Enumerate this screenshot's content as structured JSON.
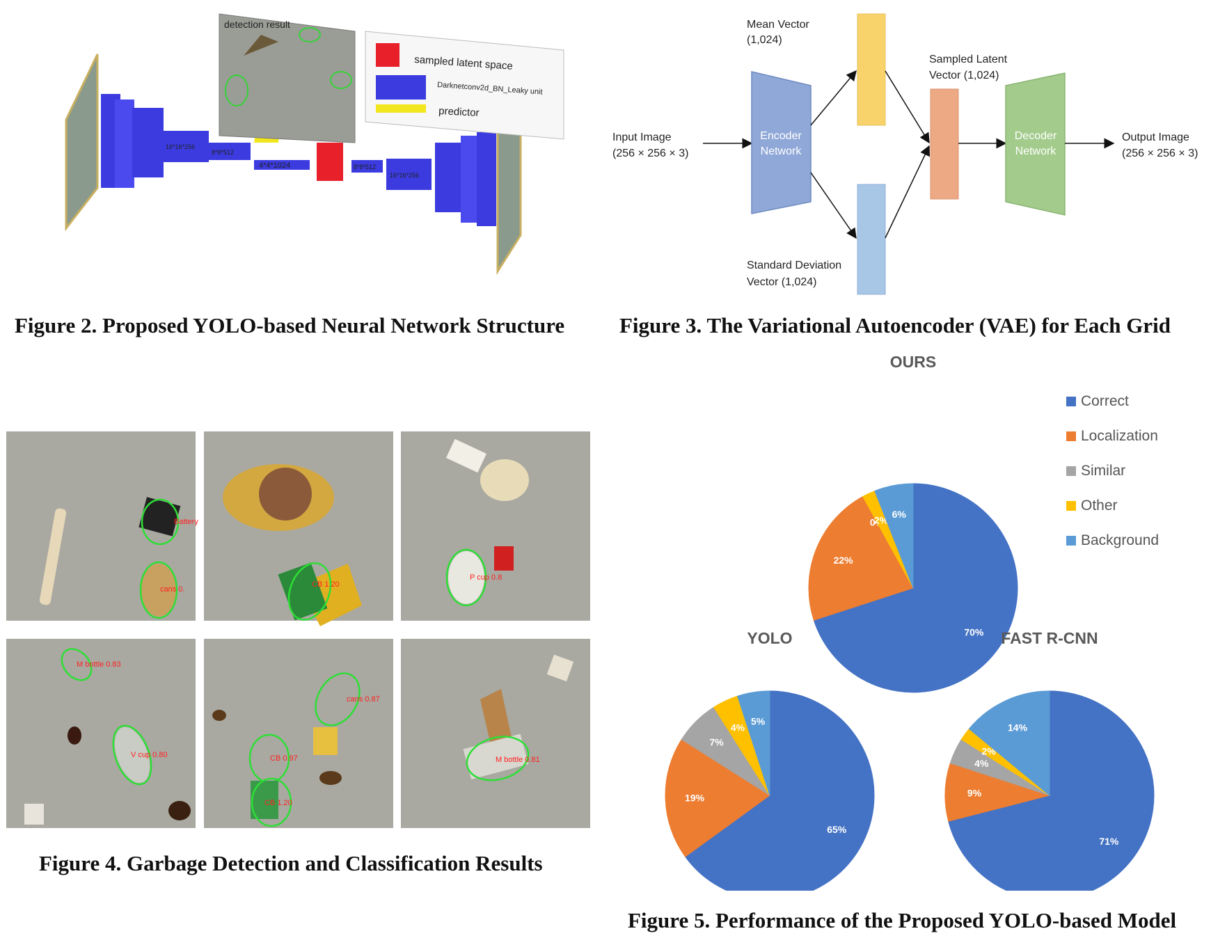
{
  "figure2": {
    "caption": "Figure 2. Proposed YOLO-based Neural Network Structure",
    "detection_title": "detection result",
    "legend": [
      {
        "label": "sampled latent space",
        "color": "#e8202a"
      },
      {
        "label": "Darknetconv2d_BN_Leaky unit",
        "color": "#3b3bdc"
      },
      {
        "label": "predictor",
        "color": "#f2e61f"
      }
    ],
    "layer_labels": [
      "16*16*256",
      "8*8*512",
      "4*4*1024",
      "8*8*512",
      "16*16*256"
    ]
  },
  "figure3": {
    "caption": "Figure 3. The Variational Autoencoder (VAE) for Each Grid",
    "input_label": [
      "Input Image",
      "(256 × 256 × 3)"
    ],
    "encoder_label": [
      "Encoder",
      "Network"
    ],
    "mean_label": [
      "Mean Vector",
      "(1,024)"
    ],
    "std_label": [
      "Standard Deviation",
      "Vector (1,024)"
    ],
    "latent_label": [
      "Sampled Latent",
      "Vector (1,024)"
    ],
    "decoder_label": [
      "Decoder",
      "Network"
    ],
    "output_label": [
      "Output Image",
      "(256 × 256 × 3)"
    ]
  },
  "figure4": {
    "caption": "Figure 4. Garbage Detection and Classification Results",
    "detections": [
      "Battery",
      "cans 0.",
      "CB 1.20",
      "P cup 0.8",
      "M bottle 0.83",
      "V cup 0.80",
      "cans 0.87",
      "CB 0.97",
      "CB 1.20",
      "M bottle 0.81"
    ]
  },
  "figure5": {
    "caption": "Figure 5. Performance of the Proposed YOLO-based Model",
    "legend": [
      {
        "label": "Correct",
        "color": "#4472c4"
      },
      {
        "label": "Localization",
        "color": "#ed7d31"
      },
      {
        "label": "Similar",
        "color": "#a5a5a5"
      },
      {
        "label": "Other",
        "color": "#ffc000"
      },
      {
        "label": "Background",
        "color": "#5b9bd5"
      }
    ]
  },
  "chart_data": [
    {
      "type": "pie",
      "title": "OURS",
      "categories": [
        "Correct",
        "Localization",
        "Similar",
        "Other",
        "Background"
      ],
      "values": [
        70,
        22,
        0,
        2,
        6
      ],
      "labels": [
        "70%",
        "22%",
        "0%",
        "2%",
        "6%"
      ]
    },
    {
      "type": "pie",
      "title": "YOLO",
      "categories": [
        "Correct",
        "Localization",
        "Similar",
        "Other",
        "Background"
      ],
      "values": [
        65,
        19,
        7,
        4,
        5
      ],
      "labels": [
        "65%",
        "19%",
        "7%",
        "4%",
        "5%"
      ]
    },
    {
      "type": "pie",
      "title": "FAST R-CNN",
      "categories": [
        "Correct",
        "Localization",
        "Similar",
        "Other",
        "Background"
      ],
      "values": [
        71,
        9,
        4,
        2,
        14
      ],
      "labels": [
        "71%",
        "9%",
        "4%",
        "2%",
        "14%"
      ]
    }
  ]
}
